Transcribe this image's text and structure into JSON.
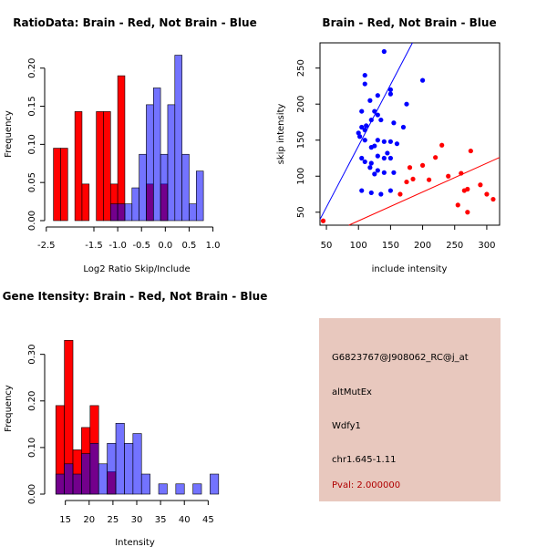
{
  "chart_data": [
    {
      "type": "histogram",
      "title": "RatioData: Brain - Red, Not Brain - Blue",
      "xlabel": "Log2 Ratio Skip/Include",
      "ylabel": "Frequency",
      "xlim": [
        -2.4,
        1.2
      ],
      "ylim": [
        0,
        0.22
      ],
      "xticks": [
        "-2.5",
        "-1.5",
        "-1.0",
        "-0.5",
        "0.0",
        "0.5",
        "1.0"
      ],
      "xtick_values": [
        -2.5,
        -1.5,
        -1.0,
        -0.5,
        0.0,
        0.5,
        1.0
      ],
      "yticks": [
        "0.00",
        "0.05",
        "0.10",
        "0.15",
        "0.20"
      ],
      "ytick_values": [
        0,
        0.05,
        0.1,
        0.15,
        0.2
      ],
      "bin_width": 0.15,
      "series": [
        {
          "name": "Brain",
          "color": "#ff0000",
          "bins": [
            [
              -2.35,
              0.095
            ],
            [
              -2.2,
              0.095
            ],
            [
              -1.9,
              0.143
            ],
            [
              -1.75,
              0.048
            ],
            [
              -1.45,
              0.143
            ],
            [
              -1.3,
              0.143
            ],
            [
              -1.15,
              0.048
            ],
            [
              -1.0,
              0.19
            ],
            [
              -0.4,
              0.048
            ],
            [
              -0.1,
              0.048
            ]
          ]
        },
        {
          "name": "Not Brain",
          "color": "#0000ff",
          "bins": [
            [
              -1.15,
              0.022
            ],
            [
              -1.0,
              0.022
            ],
            [
              -0.85,
              0.022
            ],
            [
              -0.7,
              0.043
            ],
            [
              -0.55,
              0.087
            ],
            [
              -0.4,
              0.152
            ],
            [
              -0.25,
              0.174
            ],
            [
              -0.1,
              0.087
            ],
            [
              0.05,
              0.152
            ],
            [
              0.2,
              0.217
            ],
            [
              0.35,
              0.087
            ],
            [
              0.5,
              0.022
            ],
            [
              0.65,
              0.065
            ]
          ]
        }
      ]
    },
    {
      "type": "scatter",
      "title": "Brain - Red, Not Brain - Blue",
      "xlabel": "include intensity",
      "ylabel": "skip intensity",
      "xlim": [
        40,
        320
      ],
      "ylim": [
        32,
        285
      ],
      "xticks": [
        "50",
        "100",
        "150",
        "200",
        "250",
        "300"
      ],
      "xtick_values": [
        50,
        100,
        150,
        200,
        250,
        300
      ],
      "yticks": [
        "50",
        "100",
        "150",
        "200",
        "250"
      ],
      "ytick_values": [
        50,
        100,
        150,
        200,
        250
      ],
      "series": [
        {
          "name": "Not Brain",
          "color": "#0000ff",
          "line": {
            "slope": 1.7,
            "intercept": -28
          },
          "points": [
            [
              140,
              273
            ],
            [
              110,
              240
            ],
            [
              110,
              228
            ],
            [
              200,
              233
            ],
            [
              150,
              220
            ],
            [
              150,
              214
            ],
            [
              130,
              212
            ],
            [
              118,
              205
            ],
            [
              125,
              190
            ],
            [
              130,
              185
            ],
            [
              105,
              190
            ],
            [
              175,
              200
            ],
            [
              120,
              178
            ],
            [
              135,
              178
            ],
            [
              100,
              160
            ],
            [
              105,
              168
            ],
            [
              110,
              164
            ],
            [
              112,
              170
            ],
            [
              155,
              174
            ],
            [
              170,
              168
            ],
            [
              102,
              155
            ],
            [
              110,
              150
            ],
            [
              130,
              150
            ],
            [
              140,
              148
            ],
            [
              150,
              148
            ],
            [
              120,
              140
            ],
            [
              125,
              142
            ],
            [
              145,
              132
            ],
            [
              160,
              145
            ],
            [
              130,
              128
            ],
            [
              105,
              125
            ],
            [
              110,
              120
            ],
            [
              120,
              118
            ],
            [
              140,
              125
            ],
            [
              150,
              125
            ],
            [
              118,
              112
            ],
            [
              130,
              108
            ],
            [
              125,
              103
            ],
            [
              140,
              105
            ],
            [
              155,
              105
            ],
            [
              105,
              80
            ],
            [
              120,
              77
            ],
            [
              135,
              75
            ],
            [
              150,
              80
            ]
          ]
        },
        {
          "name": "Brain",
          "color": "#ff0000",
          "line": {
            "slope": 0.4,
            "intercept": -2
          },
          "points": [
            [
              45,
              38
            ],
            [
              230,
              143
            ],
            [
              220,
              126
            ],
            [
              180,
              112
            ],
            [
              200,
              115
            ],
            [
              240,
              100
            ],
            [
              260,
              104
            ],
            [
              275,
              135
            ],
            [
              175,
              92
            ],
            [
              185,
              96
            ],
            [
              210,
              95
            ],
            [
              290,
              88
            ],
            [
              165,
              75
            ],
            [
              300,
              75
            ],
            [
              310,
              68
            ],
            [
              265,
              80
            ],
            [
              270,
              82
            ],
            [
              255,
              60
            ],
            [
              270,
              50
            ]
          ]
        }
      ]
    },
    {
      "type": "histogram",
      "title": "Gene Itensity: Brain - Red, Not Brain - Blue",
      "xlabel": "Intensity",
      "ylabel": "Frequency",
      "xlim": [
        12,
        48
      ],
      "ylim": [
        0,
        0.36
      ],
      "xticks": [
        "15",
        "20",
        "25",
        "30",
        "35",
        "40",
        "45"
      ],
      "xtick_values": [
        15,
        20,
        25,
        30,
        35,
        40,
        45
      ],
      "yticks": [
        "0.00",
        "0.10",
        "0.20",
        "0.30"
      ],
      "ytick_values": [
        0,
        0.1,
        0.2,
        0.3
      ],
      "bin_width": 1.8,
      "series": [
        {
          "name": "Brain",
          "color": "#ff0000",
          "bins": [
            [
              13.0,
              0.19
            ],
            [
              14.8,
              0.33
            ],
            [
              16.6,
              0.095
            ],
            [
              18.4,
              0.143
            ],
            [
              20.2,
              0.19
            ],
            [
              23.8,
              0.048
            ]
          ]
        },
        {
          "name": "Not Brain",
          "color": "#0000ff",
          "bins": [
            [
              13.0,
              0.043
            ],
            [
              14.8,
              0.065
            ],
            [
              16.6,
              0.043
            ],
            [
              18.4,
              0.087
            ],
            [
              20.2,
              0.109
            ],
            [
              22.0,
              0.065
            ],
            [
              23.8,
              0.109
            ],
            [
              25.6,
              0.152
            ],
            [
              27.4,
              0.109
            ],
            [
              29.2,
              0.13
            ],
            [
              31.0,
              0.043
            ],
            [
              34.6,
              0.022
            ],
            [
              38.2,
              0.022
            ],
            [
              41.8,
              0.022
            ],
            [
              45.4,
              0.043
            ]
          ]
        }
      ]
    }
  ],
  "info_panel": {
    "probe": "G6823767@J908062_RC@j_at",
    "event_type": "altMutEx",
    "gene": "Wdfy1",
    "location": "chr1.645-1.11",
    "pval": "Pval: 2.000000"
  }
}
